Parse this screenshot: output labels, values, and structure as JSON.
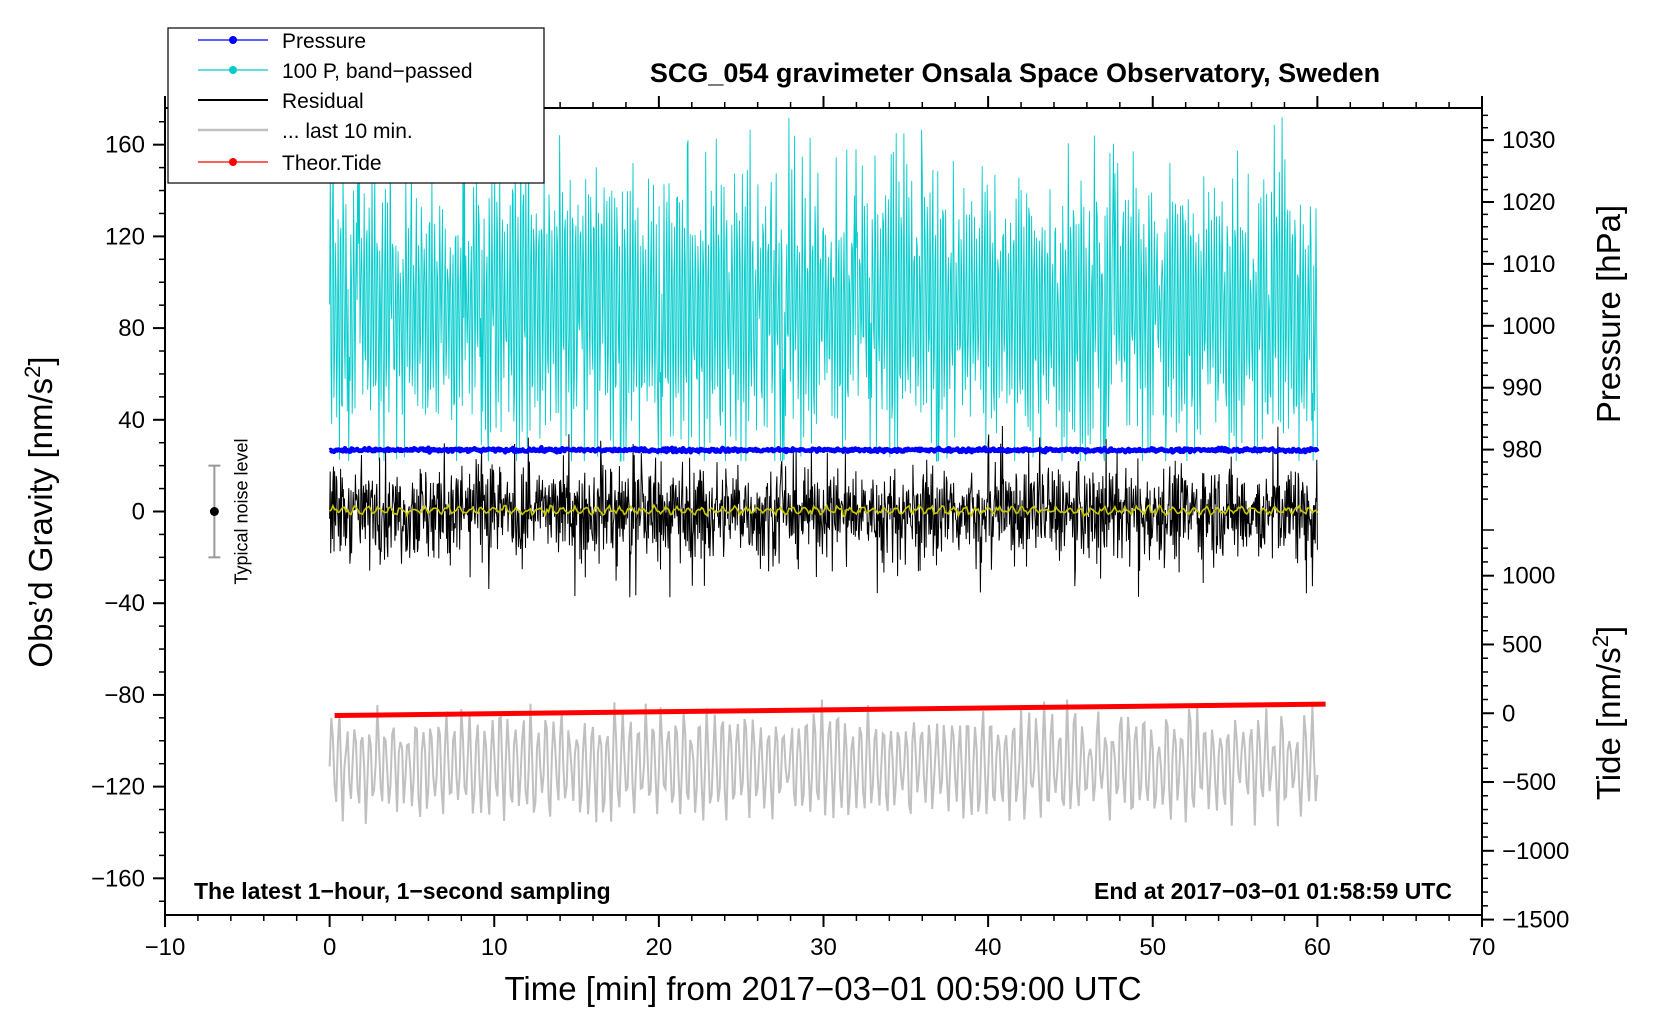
{
  "chart_data": {
    "type": "line",
    "title": "SCG_054 gravimeter Onsala Space Observatory, Sweden",
    "xlabel": "Time [min] from 2017−03−01 00:59:00 UTC",
    "ylabel_left_main": "Obs’d Gravity [nm/s",
    "ylabel_left_sup": "2",
    "ylabel_left_end": "]",
    "ylabel_right_pressure": "Pressure [hPa]",
    "ylabel_right_tide_main": "Tide [nm/s",
    "ylabel_right_tide_sup": "2",
    "ylabel_right_tide_end": "]",
    "xlim": [
      -10,
      70
    ],
    "ylim_left": [
      -176,
      176
    ],
    "x_ticks": [
      -10,
      0,
      10,
      20,
      30,
      40,
      50,
      60,
      70
    ],
    "x_tick_labels": [
      "−10",
      "0",
      "10",
      "20",
      "30",
      "40",
      "50",
      "60",
      "70"
    ],
    "y_ticks_left": [
      160,
      120,
      80,
      40,
      0,
      -40,
      -80,
      -120,
      -160
    ],
    "y_tick_labels_left": [
      "160",
      "120",
      "80",
      "40",
      "0",
      "−40",
      "−80",
      "−120",
      "−160"
    ],
    "pressure_axis": {
      "ticks": [
        980,
        990,
        1000,
        1010,
        1020,
        1030
      ],
      "tick_labels": [
        "980",
        "990",
        "1000",
        "1010",
        "1020",
        "1030"
      ],
      "gravity_at_980": 27,
      "gravity_per_hpa": 2.7
    },
    "tide_axis": {
      "ticks": [
        1000,
        500,
        0,
        -500,
        -1000,
        -1500
      ],
      "tick_labels": [
        "1000",
        "500",
        "0",
        "−500",
        "−1000",
        "−1500"
      ],
      "gravity_at_0": -88,
      "gravity_per_nms2": 0.06
    },
    "annotations": {
      "bottom_left": "The latest 1−hour, 1−second sampling",
      "bottom_right": "End at 2017−03−01 01:58:59 UTC",
      "noise_label": "Typical noise level",
      "noise_level": {
        "x": -7,
        "center": 0,
        "half_range": 20
      }
    },
    "legend": {
      "position": "top-left",
      "entries": [
        {
          "label": "Pressure",
          "color": "#0000ff",
          "marker": true
        },
        {
          "label": "100 P, band−passed",
          "color": "#00cccc",
          "marker": true
        },
        {
          "label": "Residual",
          "color": "#000000",
          "marker": false
        },
        {
          "label": "... last 10 min.",
          "color": "#c0c0c0",
          "marker": false
        },
        {
          "label": "Theor.Tide",
          "color": "#ff0000",
          "marker": true
        }
      ]
    },
    "series": [
      {
        "name": "Pressure",
        "color": "#0000ff",
        "x_range": [
          0,
          60
        ],
        "mean": 26.8,
        "amplitude": 1.2,
        "comment": "approx 980 hPa, nearly constant"
      },
      {
        "name": "100 P, band−passed",
        "color": "#00cccc",
        "x_range": [
          0,
          60
        ],
        "mean": 90,
        "amplitude": 45,
        "peak_max": 172,
        "trough_min": 22
      },
      {
        "name": "Residual",
        "color": "#000000",
        "x_range": [
          0,
          60
        ],
        "mean": 0,
        "amplitude": 12,
        "peak_max": 38,
        "trough_min": -48
      },
      {
        "name": "Residual smoothed",
        "color": "#c8c800",
        "x_range": [
          0,
          60
        ],
        "mean": 0.5,
        "amplitude": 2
      },
      {
        "name": "... last 10 min.",
        "color": "#c0c0c0",
        "x_range": [
          0,
          60
        ],
        "mean": -110,
        "amplitude": 18,
        "peak_max": -72,
        "trough_min": -138
      },
      {
        "name": "Theor.Tide",
        "color": "#ff0000",
        "x": [
          0.3,
          60.5
        ],
        "y": [
          -89,
          -84
        ]
      }
    ]
  }
}
